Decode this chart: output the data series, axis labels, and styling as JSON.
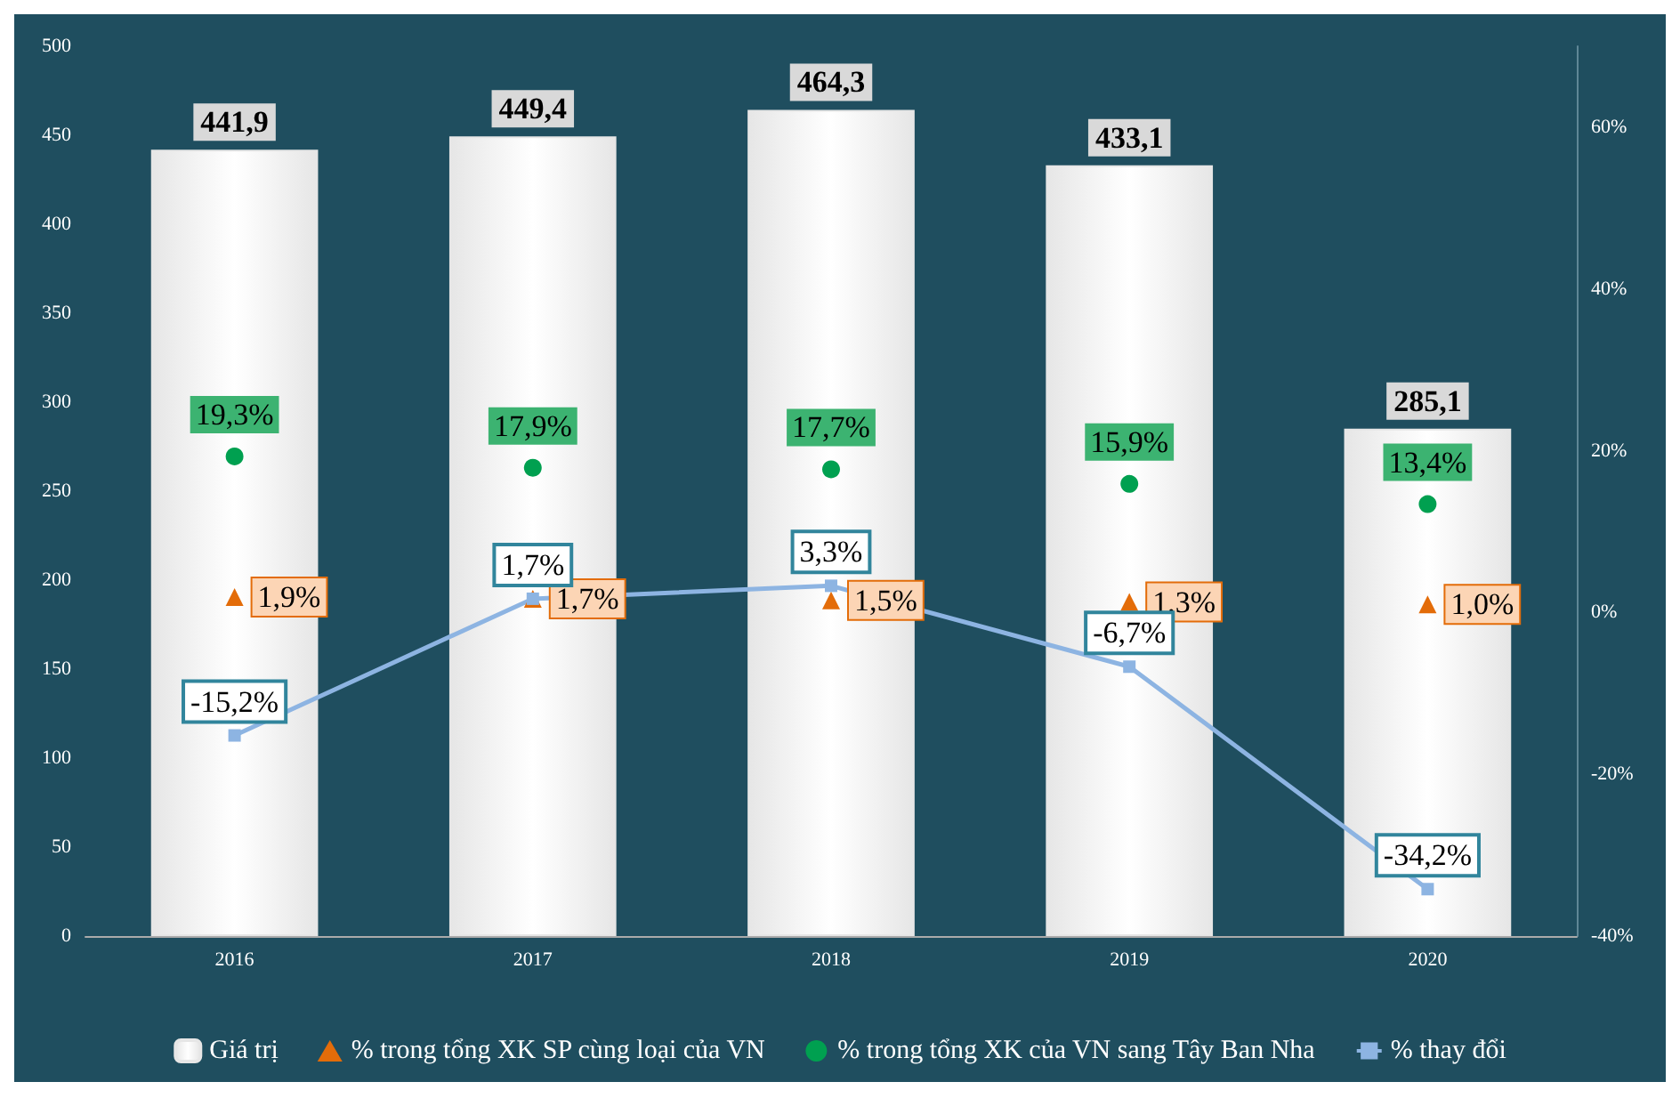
{
  "chart_data": {
    "type": "bar",
    "categories": [
      "2016",
      "2017",
      "2018",
      "2019",
      "2020"
    ],
    "series": [
      {
        "name": "Giá trị",
        "color": "#e6e6e6",
        "values": [
          441.9,
          449.4,
          464.3,
          433.1,
          285.1
        ],
        "value_labels": [
          "441,9",
          "449,4",
          "464,3",
          "433,1",
          "285,1"
        ]
      },
      {
        "name": "% trong tổng XK SP cùng loại của VN",
        "type": "scatter",
        "axis": "y2",
        "marker": "triangle",
        "color": "#e36c09",
        "values": [
          1.9,
          1.7,
          1.5,
          1.3,
          1.0
        ],
        "value_labels": [
          "1,9%",
          "1,7%",
          "1,5%",
          "1,3%",
          "1,0%"
        ]
      },
      {
        "name": "% trong tổng XK của VN sang Tây Ban Nha",
        "type": "scatter",
        "axis": "y2",
        "marker": "circle",
        "color": "#00a050",
        "values": [
          19.3,
          17.9,
          17.7,
          15.9,
          13.4
        ],
        "value_labels": [
          "19,3%",
          "17,9%",
          "17,7%",
          "15,9%",
          "13,4%"
        ]
      },
      {
        "name": "% thay đổi",
        "type": "line",
        "axis": "y2",
        "marker": "square",
        "color": "#8db4e2",
        "values": [
          -15.2,
          1.7,
          3.3,
          -6.7,
          -34.2
        ],
        "value_labels": [
          "-15,2%",
          "1,7%",
          "3,3%",
          "-6,7%",
          "-34,2%"
        ]
      }
    ],
    "ylim": [
      0,
      500
    ],
    "yticks": [
      0,
      50,
      100,
      150,
      200,
      250,
      300,
      350,
      400,
      450,
      500
    ],
    "y2lim": [
      -40,
      70
    ],
    "y2ticks": [
      {
        "value": -40,
        "label": "-40%"
      },
      {
        "value": -20,
        "label": "-20%"
      },
      {
        "value": 0,
        "label": "0%"
      },
      {
        "value": 20,
        "label": "20%"
      },
      {
        "value": 40,
        "label": "40%"
      },
      {
        "value": 60,
        "label": "60%"
      }
    ],
    "grid": false,
    "legend": "bottom"
  }
}
